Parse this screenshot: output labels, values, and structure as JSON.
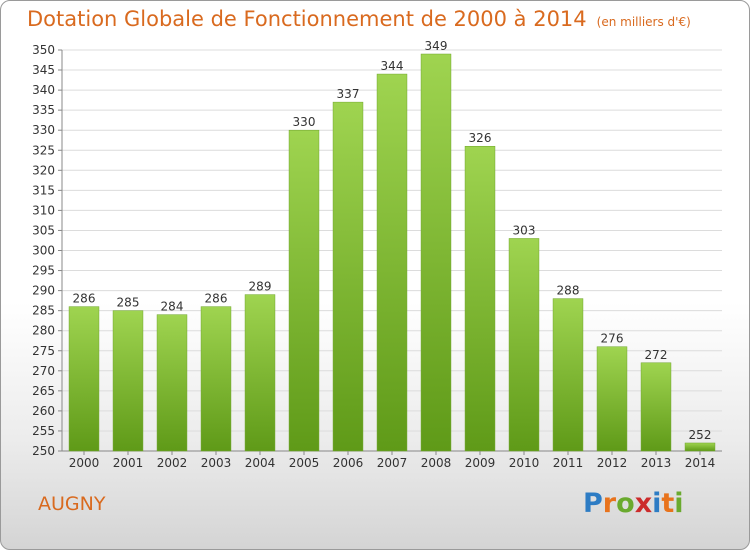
{
  "chart_data": {
    "type": "bar",
    "title": "Dotation Globale de Fonctionnement de 2000 à 2014",
    "subtitle": "(en milliers d'€)",
    "categories": [
      "2000",
      "2001",
      "2002",
      "2003",
      "2004",
      "2005",
      "2006",
      "2007",
      "2008",
      "2009",
      "2010",
      "2011",
      "2012",
      "2013",
      "2014"
    ],
    "values": [
      286,
      285,
      284,
      286,
      289,
      330,
      337,
      344,
      349,
      326,
      303,
      288,
      276,
      272,
      252
    ],
    "ylim": [
      250,
      350
    ],
    "ytick_step": 5,
    "grid": true,
    "bar_color": "#7fc032",
    "xlabel": "",
    "ylabel": ""
  },
  "location": "AUGNY",
  "logo": {
    "text": "Proxiti",
    "letter_colors": [
      "#2d7cc4",
      "#e8731c",
      "#6aaa2e",
      "#cc2b2b",
      "#2d7cc4",
      "#e8731c",
      "#6aaa2e"
    ]
  }
}
